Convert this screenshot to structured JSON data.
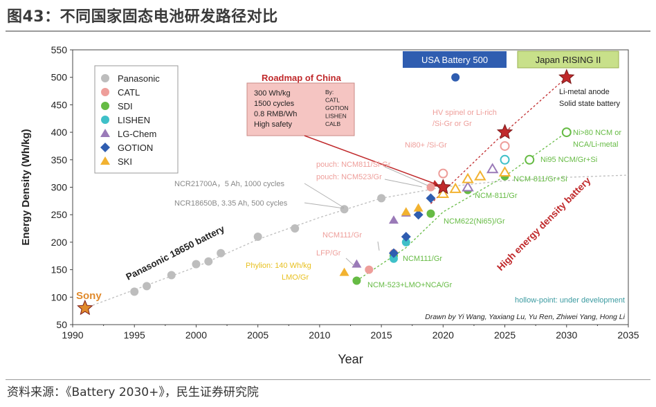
{
  "header": {
    "title": "图43：不同国家固态电池研发路径对比"
  },
  "footer": {
    "source": "资料来源：《Battery 2030+》，民生证券研究院"
  },
  "chart_data": {
    "type": "scatter",
    "title": "",
    "xlabel": "Year",
    "ylabel": "Energy Density (Wh/kg)",
    "xlim": [
      1990,
      2035
    ],
    "ylim": [
      50,
      550
    ],
    "xticks": [
      "1990",
      "1995",
      "2000",
      "2005",
      "2010",
      "2015",
      "2020",
      "2025",
      "2030",
      "2035"
    ],
    "yticks": [
      "50",
      "100",
      "150",
      "200",
      "250",
      "300",
      "350",
      "400",
      "450",
      "500",
      "550"
    ],
    "legend": {
      "position": "top-left",
      "entries": [
        {
          "name": "Panasonic",
          "color": "#bdbdbd",
          "marker": "circle"
        },
        {
          "name": "CATL",
          "color": "#ee9e9a",
          "marker": "circle"
        },
        {
          "name": "SDI",
          "color": "#66bb44",
          "marker": "circle"
        },
        {
          "name": "LISHEN",
          "color": "#3fc0c8",
          "marker": "circle"
        },
        {
          "name": "LG-Chem",
          "color": "#9a7ab8",
          "marker": "triangle"
        },
        {
          "name": "GOTION",
          "color": "#2f5db0",
          "marker": "diamond"
        },
        {
          "name": "SKI",
          "color": "#f2b230",
          "marker": "triangle"
        }
      ]
    },
    "series": [
      {
        "name": "Panasonic",
        "color": "#bdbdbd",
        "marker": "circle",
        "points": [
          [
            1995,
            110
          ],
          [
            1996,
            120
          ],
          [
            1998,
            140
          ],
          [
            2000,
            160
          ],
          [
            2001,
            165
          ],
          [
            2002,
            180
          ],
          [
            2005,
            210
          ],
          [
            2008,
            225
          ],
          [
            2012,
            260
          ],
          [
            2015,
            280
          ]
        ]
      },
      {
        "name": "Sony",
        "color": "#e08a2c",
        "marker": "star",
        "points": [
          [
            1991,
            80
          ]
        ]
      },
      {
        "name": "CATL",
        "color": "#ee9e9a",
        "marker": "circle",
        "points": [
          [
            2014,
            150
          ],
          [
            2016,
            180
          ],
          [
            2019,
            300
          ]
        ]
      },
      {
        "name": "CATL",
        "color": "#ee9e9a",
        "marker": "hollow-circle",
        "points": [
          [
            2020,
            325
          ],
          [
            2025,
            375
          ]
        ]
      },
      {
        "name": "SDI",
        "color": "#66bb44",
        "marker": "circle",
        "points": [
          [
            2013,
            130
          ],
          [
            2016,
            175
          ],
          [
            2019,
            252
          ],
          [
            2022,
            295
          ],
          [
            2025,
            320
          ]
        ]
      },
      {
        "name": "SDI",
        "color": "#66bb44",
        "marker": "hollow-circle",
        "points": [
          [
            2027,
            350
          ],
          [
            2030,
            400
          ]
        ]
      },
      {
        "name": "LISHEN",
        "color": "#3fc0c8",
        "marker": "circle",
        "points": [
          [
            2016,
            170
          ],
          [
            2017,
            200
          ]
        ]
      },
      {
        "name": "LISHEN",
        "color": "#3fc0c8",
        "marker": "hollow-circle",
        "points": [
          [
            2025,
            350
          ]
        ]
      },
      {
        "name": "LG-Chem",
        "color": "#9a7ab8",
        "marker": "triangle",
        "points": [
          [
            2013,
            160
          ],
          [
            2016,
            240
          ],
          [
            2017,
            253
          ]
        ]
      },
      {
        "name": "LG-Chem",
        "color": "#9a7ab8",
        "marker": "hollow-triangle",
        "points": [
          [
            2022,
            300
          ],
          [
            2024,
            333
          ]
        ]
      },
      {
        "name": "GOTION",
        "color": "#2f5db0",
        "marker": "diamond",
        "points": [
          [
            2016,
            180
          ],
          [
            2017,
            210
          ],
          [
            2018,
            250
          ],
          [
            2019,
            280
          ],
          [
            2020,
            300
          ]
        ]
      },
      {
        "name": "SKI",
        "color": "#f2b230",
        "marker": "triangle",
        "points": [
          [
            2012,
            145
          ],
          [
            2017,
            255
          ],
          [
            2018,
            262
          ]
        ]
      },
      {
        "name": "SKI",
        "color": "#f2b230",
        "marker": "hollow-triangle",
        "points": [
          [
            2020,
            288
          ],
          [
            2021,
            297
          ],
          [
            2022,
            315
          ],
          [
            2023,
            320
          ],
          [
            2025,
            327
          ]
        ]
      },
      {
        "name": "USA Battery 500",
        "color": "#2f5db0",
        "marker": "circle",
        "points": [
          [
            2021,
            500
          ]
        ]
      },
      {
        "name": "Roadmap of China",
        "color": "#c0292b",
        "marker": "star",
        "points": [
          [
            2020,
            300
          ],
          [
            2025,
            400
          ]
        ]
      },
      {
        "name": "Japan RISING II",
        "color": "#c0292b",
        "marker": "star",
        "points": [
          [
            2030,
            500
          ]
        ]
      }
    ],
    "trend_lines": [
      {
        "color": "#bdbdbd",
        "points": [
          [
            1991,
            80
          ],
          [
            2000,
            155
          ],
          [
            2005,
            205
          ],
          [
            2010,
            245
          ],
          [
            2015,
            280
          ],
          [
            2020,
            300
          ],
          [
            2025,
            312
          ],
          [
            2030,
            318
          ],
          [
            2035,
            322
          ]
        ]
      },
      {
        "color": "#66bb44",
        "points": [
          [
            2013,
            130
          ],
          [
            2017,
            190
          ],
          [
            2020,
            255
          ],
          [
            2025,
            320
          ],
          [
            2030,
            400
          ]
        ]
      },
      {
        "color": "#c0292b",
        "points": [
          [
            2019,
            270
          ],
          [
            2025,
            400
          ],
          [
            2030,
            500
          ]
        ]
      }
    ],
    "annotations": [
      {
        "text": "Roadmap of China",
        "color": "#c0292b",
        "bold": true
      },
      {
        "text": "USA Battery 500",
        "color": "#ffffff",
        "background": "#2f5db0"
      },
      {
        "text": "Japan RISING II",
        "color": "#222222",
        "background": "#c8e08a"
      },
      {
        "text": "Li-metal anode",
        "color": "#222222"
      },
      {
        "text": "Solid state battery",
        "color": "#222222"
      },
      {
        "text": "HV spinel or Li-rich",
        "color": "#ee9e9a"
      },
      {
        "text": "/Si-Gr or Gr",
        "color": "#ee9e9a"
      },
      {
        "text": "Ni80+ /Si-Gr",
        "color": "#ee9e9a"
      },
      {
        "text": "pouch: NCM811/Si-Gr",
        "color": "#ee9e9a"
      },
      {
        "text": "pouch: NCM523/Gr",
        "color": "#ee9e9a"
      },
      {
        "text": "NCR21700A，5 Ah, 1000 cycles",
        "color": "#888888"
      },
      {
        "text": "NCR18650B, 3.35 Ah, 500 cycles",
        "color": "#888888"
      },
      {
        "text": "Panasonic 18650 battery",
        "color": "#222222",
        "bold": true
      },
      {
        "text": "Sony",
        "color": "#e08a2c",
        "bold": true
      },
      {
        "text": "NCM111/Gr",
        "color": "#ee9e9a"
      },
      {
        "text": "LFP/Gr",
        "color": "#ee9e9a"
      },
      {
        "text": "Phylion: 140 Wh/kg",
        "color": "#e8c020"
      },
      {
        "text": "LMO/Gr",
        "color": "#e8c020"
      },
      {
        "text": "NCM-523+LMO+NCA/Gr",
        "color": "#66bb44"
      },
      {
        "text": "NCM111/Gr",
        "color": "#66bb44"
      },
      {
        "text": "NCM622(Ni65)/Gr",
        "color": "#66bb44"
      },
      {
        "text": "NCM-811/Gr",
        "color": "#66bb44"
      },
      {
        "text": "NCM-811/Gr+Si",
        "color": "#66bb44"
      },
      {
        "text": "Ni95 NCM/Gr+Si",
        "color": "#66bb44"
      },
      {
        "text": "Ni>80 NCM or",
        "color": "#66bb44"
      },
      {
        "text": "NCA/Li-metal",
        "color": "#66bb44"
      },
      {
        "text": "High energy density battery",
        "color": "#c0292b",
        "bold": true
      },
      {
        "text": "hollow-point: under development",
        "color": "#3a9aa0"
      },
      {
        "text": "Drawn by Yi Wang, Yaxiang Lu, Yu Ren, Zhiwei Yang, Hong Li",
        "color": "#222222",
        "italic": true
      }
    ],
    "roadmap_box": {
      "lines": [
        "300 Wh/kg",
        "1500 cycles",
        "0.8 RMB/Wh",
        "High safety"
      ],
      "by_lines": [
        "By:",
        "CATL",
        "GOTION",
        "LISHEN",
        "CALB"
      ]
    }
  }
}
